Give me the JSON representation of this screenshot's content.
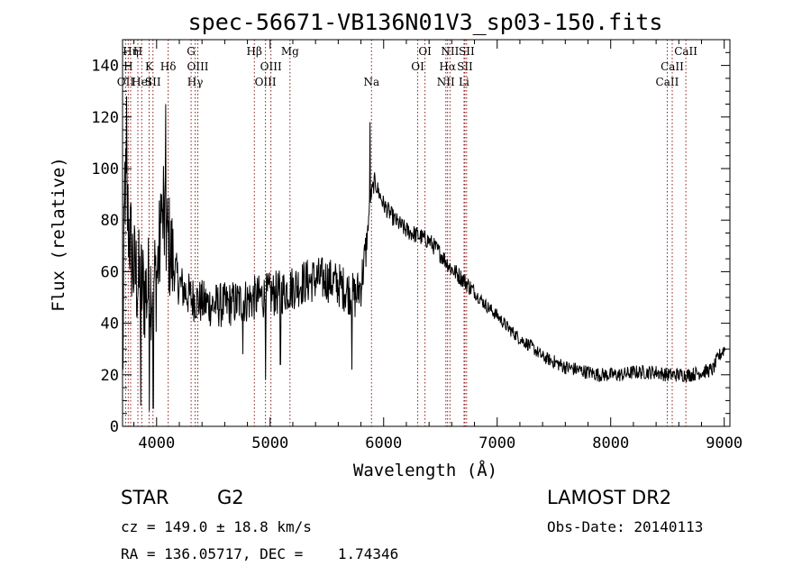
{
  "chart_data": {
    "type": "line",
    "title": "spec-56671-VB136N01V3_sp03-150.fits",
    "xlabel": "Wavelength (Å)",
    "ylabel": "Flux (relative)",
    "xlim": [
      3700,
      9050
    ],
    "ylim": [
      0,
      150
    ],
    "x_ticks": [
      4000,
      5000,
      6000,
      7000,
      8000,
      9000
    ],
    "y_ticks": [
      0,
      20,
      40,
      60,
      80,
      100,
      120,
      140
    ],
    "x_tick_labels": [
      "4000",
      "5000",
      "6000",
      "7000",
      "8000",
      "9000"
    ],
    "y_tick_labels": [
      "0",
      "20",
      "40",
      "60",
      "80",
      "100",
      "120",
      "140"
    ],
    "spectrum_color": "#000000",
    "line_marker_color": "#8b1a1a",
    "continuum": [
      {
        "x": 3700,
        "y": 15
      },
      {
        "x": 3720,
        "y": 95
      },
      {
        "x": 3760,
        "y": 75
      },
      {
        "x": 3800,
        "y": 60
      },
      {
        "x": 3850,
        "y": 55
      },
      {
        "x": 3900,
        "y": 52
      },
      {
        "x": 3950,
        "y": 55
      },
      {
        "x": 4000,
        "y": 58
      },
      {
        "x": 4050,
        "y": 78
      },
      {
        "x": 4100,
        "y": 72
      },
      {
        "x": 4150,
        "y": 62
      },
      {
        "x": 4200,
        "y": 55
      },
      {
        "x": 4300,
        "y": 50
      },
      {
        "x": 4400,
        "y": 48
      },
      {
        "x": 4500,
        "y": 47
      },
      {
        "x": 4600,
        "y": 47
      },
      {
        "x": 4700,
        "y": 48
      },
      {
        "x": 4800,
        "y": 49
      },
      {
        "x": 4900,
        "y": 50
      },
      {
        "x": 5000,
        "y": 51
      },
      {
        "x": 5100,
        "y": 52
      },
      {
        "x": 5200,
        "y": 54
      },
      {
        "x": 5300,
        "y": 56
      },
      {
        "x": 5400,
        "y": 57
      },
      {
        "x": 5500,
        "y": 57
      },
      {
        "x": 5600,
        "y": 55
      },
      {
        "x": 5700,
        "y": 52
      },
      {
        "x": 5750,
        "y": 50
      },
      {
        "x": 5800,
        "y": 55
      },
      {
        "x": 5850,
        "y": 70
      },
      {
        "x": 5880,
        "y": 88
      },
      {
        "x": 5920,
        "y": 95
      },
      {
        "x": 6000,
        "y": 86
      },
      {
        "x": 6100,
        "y": 80
      },
      {
        "x": 6200,
        "y": 76
      },
      {
        "x": 6300,
        "y": 74
      },
      {
        "x": 6400,
        "y": 72
      },
      {
        "x": 6500,
        "y": 67
      },
      {
        "x": 6600,
        "y": 61
      },
      {
        "x": 6700,
        "y": 57
      },
      {
        "x": 6800,
        "y": 52
      },
      {
        "x": 6900,
        "y": 47
      },
      {
        "x": 7000,
        "y": 43
      },
      {
        "x": 7100,
        "y": 38
      },
      {
        "x": 7200,
        "y": 34
      },
      {
        "x": 7300,
        "y": 31
      },
      {
        "x": 7400,
        "y": 27
      },
      {
        "x": 7500,
        "y": 25
      },
      {
        "x": 7600,
        "y": 23
      },
      {
        "x": 7700,
        "y": 22
      },
      {
        "x": 7800,
        "y": 21
      },
      {
        "x": 7900,
        "y": 20
      },
      {
        "x": 8000,
        "y": 20
      },
      {
        "x": 8100,
        "y": 20
      },
      {
        "x": 8200,
        "y": 21
      },
      {
        "x": 8300,
        "y": 21
      },
      {
        "x": 8400,
        "y": 21
      },
      {
        "x": 8500,
        "y": 20
      },
      {
        "x": 8600,
        "y": 20
      },
      {
        "x": 8700,
        "y": 20
      },
      {
        "x": 8800,
        "y": 21
      },
      {
        "x": 8900,
        "y": 22
      },
      {
        "x": 8950,
        "y": 27
      },
      {
        "x": 9000,
        "y": 30
      },
      {
        "x": 9050,
        "y": 30
      }
    ],
    "spikes": [
      {
        "x": 3735,
        "y": 128
      },
      {
        "x": 3860,
        "y": 8
      },
      {
        "x": 3935,
        "y": 6
      },
      {
        "x": 3970,
        "y": 7
      },
      {
        "x": 4045,
        "y": 90
      },
      {
        "x": 4060,
        "y": 101
      },
      {
        "x": 4080,
        "y": 125
      },
      {
        "x": 4760,
        "y": 28
      },
      {
        "x": 4960,
        "y": 18
      },
      {
        "x": 5090,
        "y": 24
      },
      {
        "x": 5720,
        "y": 22
      },
      {
        "x": 5880,
        "y": 118
      }
    ],
    "line_markers": [
      {
        "x": 3727,
        "labels": [
          "OII"
        ],
        "rows": [
          2
        ]
      },
      {
        "x": 3750,
        "labels": [
          "H"
        ],
        "rows": [
          1
        ]
      },
      {
        "x": 3771,
        "labels": [
          "Hη"
        ],
        "rows": [
          0
        ]
      },
      {
        "x": 3835,
        "labels": [
          "H"
        ],
        "rows": [
          0
        ]
      },
      {
        "x": 3869,
        "labels": [
          "HeI"
        ],
        "rows": [
          2
        ]
      },
      {
        "x": 3934,
        "labels": [
          "K"
        ],
        "rows": [
          1
        ]
      },
      {
        "x": 3968,
        "labels": [
          "SII"
        ],
        "rows": [
          2
        ]
      },
      {
        "x": 4102,
        "labels": [
          "Hδ"
        ],
        "rows": [
          1
        ]
      },
      {
        "x": 4304,
        "labels": [
          "G"
        ],
        "rows": [
          0
        ]
      },
      {
        "x": 4340,
        "labels": [
          "Hγ"
        ],
        "rows": [
          2
        ]
      },
      {
        "x": 4363,
        "labels": [
          "OIII"
        ],
        "rows": [
          1
        ]
      },
      {
        "x": 4861,
        "labels": [
          "Hβ"
        ],
        "rows": [
          0
        ]
      },
      {
        "x": 4959,
        "labels": [
          "OIII"
        ],
        "rows": [
          2
        ]
      },
      {
        "x": 5007,
        "labels": [
          "OIII"
        ],
        "rows": [
          1
        ]
      },
      {
        "x": 5175,
        "labels": [
          "Mg"
        ],
        "rows": [
          0
        ]
      },
      {
        "x": 5893,
        "labels": [
          "Na"
        ],
        "rows": [
          2
        ]
      },
      {
        "x": 6300,
        "labels": [
          "OI"
        ],
        "rows": [
          1
        ]
      },
      {
        "x": 6364,
        "labels": [
          "OI"
        ],
        "rows": [
          0
        ]
      },
      {
        "x": 6548,
        "labels": [
          "NII"
        ],
        "rows": [
          2
        ]
      },
      {
        "x": 6563,
        "labels": [
          "Hα"
        ],
        "rows": [
          1
        ]
      },
      {
        "x": 6584,
        "labels": [
          "NII"
        ],
        "rows": [
          0
        ]
      },
      {
        "x": 6708,
        "labels": [
          "Li"
        ],
        "rows": [
          2
        ]
      },
      {
        "x": 6716,
        "labels": [
          "SII"
        ],
        "rows": [
          1
        ]
      },
      {
        "x": 6731,
        "labels": [
          "SII"
        ],
        "rows": [
          0
        ]
      },
      {
        "x": 8498,
        "labels": [
          "CaII"
        ],
        "rows": [
          2
        ]
      },
      {
        "x": 8542,
        "labels": [
          "CaII"
        ],
        "rows": [
          1
        ]
      },
      {
        "x": 8662,
        "labels": [
          "CaII"
        ],
        "rows": [
          0
        ]
      }
    ]
  },
  "info": {
    "class": "STAR",
    "subclass": "G2",
    "survey": "LAMOST DR2",
    "cz": "cz = 149.0 ± 18.8 km/s",
    "obs_date": "Obs-Date: 20140113",
    "coords": "RA = 136.05717, DEC =    1.74346"
  }
}
